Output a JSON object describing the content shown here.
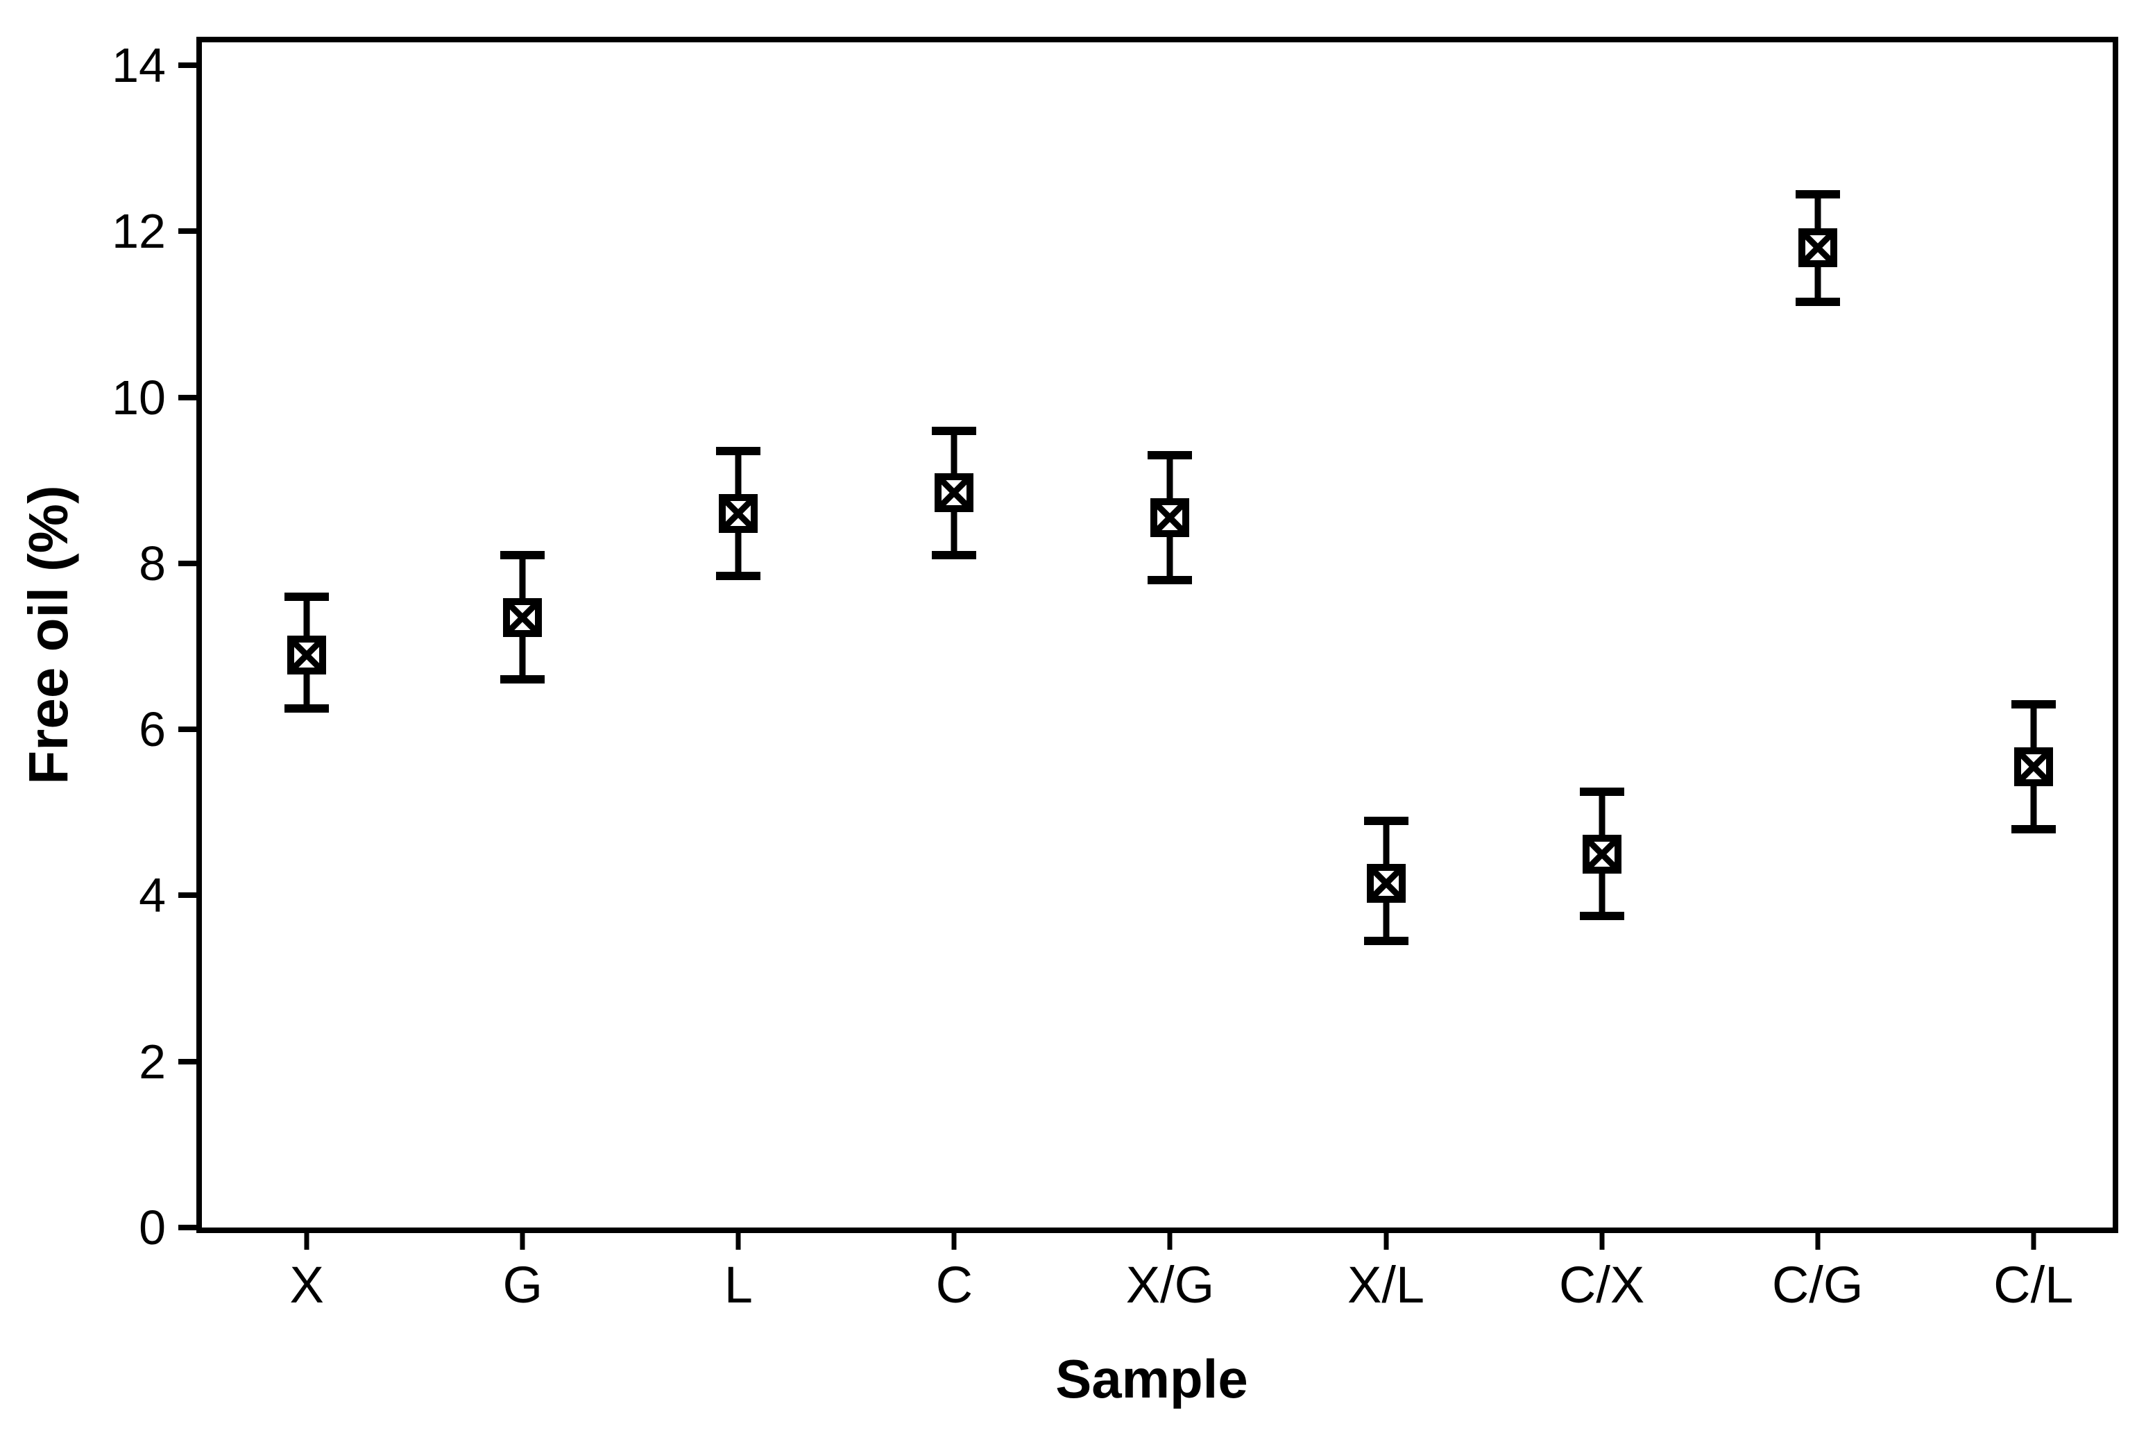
{
  "chart_data": {
    "type": "scatter",
    "subtype": "interval-plot-mean-with-error-bars",
    "title": "",
    "xlabel": "Sample",
    "ylabel": "Free oil (%)",
    "categories": [
      "X",
      "G",
      "L",
      "C",
      "X/G",
      "X/L",
      "C/X",
      "C/G",
      "C/L"
    ],
    "series": [
      {
        "name": "Free oil (%)",
        "means": [
          6.9,
          7.35,
          8.6,
          8.85,
          8.55,
          4.15,
          4.5,
          11.8,
          5.55
        ],
        "upper": [
          7.6,
          8.1,
          9.35,
          9.6,
          9.3,
          4.9,
          5.25,
          12.45,
          6.3
        ],
        "lower": [
          6.25,
          6.6,
          7.85,
          8.1,
          7.8,
          3.45,
          3.75,
          11.15,
          4.8
        ]
      }
    ],
    "y_ticks": [
      0,
      2,
      4,
      6,
      8,
      10,
      12,
      14
    ],
    "ylim": [
      0,
      14
    ],
    "grid": false,
    "legend": false,
    "marker": "boxed-x-square",
    "error_bars": true,
    "colors": {
      "foreground": "#000000",
      "background": "#ffffff"
    }
  }
}
